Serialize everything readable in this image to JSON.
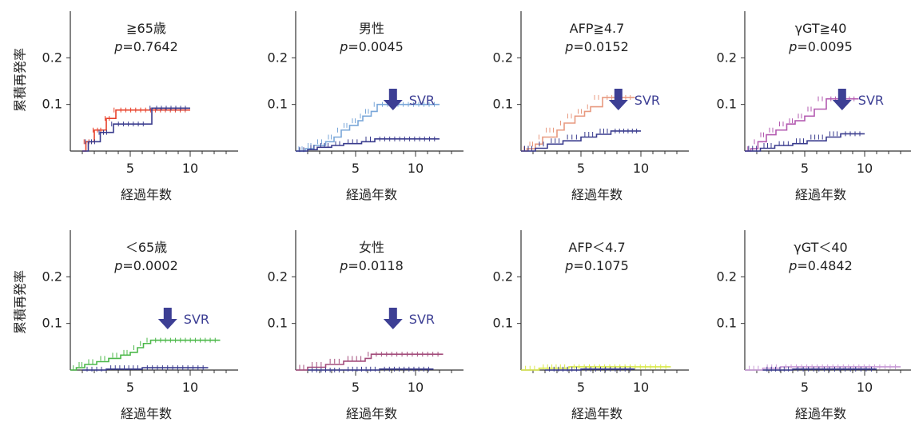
{
  "ylabel": "累積再発率",
  "xlabel": "経過年数",
  "colors": {
    "axis": "#333333",
    "svr_series": "#3a3c8e",
    "arrow": "#3d3f94",
    "text": "#222222"
  },
  "chart_data": [
    {
      "type": "line",
      "title": "≧65歳",
      "p_value": "0.7642",
      "svr_label": "",
      "xlim": [
        0,
        14
      ],
      "ylim": [
        0,
        0.3
      ],
      "xticks": [
        5,
        10
      ],
      "yticks": [
        0.1,
        0.2
      ],
      "series": [
        {
          "color": "#e8402a",
          "values": [
            [
              1,
              0
            ],
            [
              1.3,
              0.02
            ],
            [
              1.8,
              0.02
            ],
            [
              2,
              0.045
            ],
            [
              2.8,
              0.045
            ],
            [
              3,
              0.07
            ],
            [
              3.5,
              0.07
            ],
            [
              3.8,
              0.088
            ],
            [
              10,
              0.088
            ]
          ]
        },
        {
          "color": "#3a3c8e",
          "values": [
            [
              1,
              0
            ],
            [
              1.5,
              0.02
            ],
            [
              2.3,
              0.02
            ],
            [
              2.5,
              0.04
            ],
            [
              3.3,
              0.04
            ],
            [
              3.6,
              0.058
            ],
            [
              6.5,
              0.058
            ],
            [
              6.8,
              0.092
            ],
            [
              10,
              0.092
            ]
          ]
        }
      ]
    },
    {
      "type": "line",
      "title": "男性",
      "p_value": "0.0045",
      "svr_label": "SVR",
      "xlim": [
        0,
        14
      ],
      "ylim": [
        0,
        0.3
      ],
      "xticks": [
        5,
        10
      ],
      "yticks": [
        0.1,
        0.2
      ],
      "series": [
        {
          "color": "#7aa7d9",
          "values": [
            [
              0,
              0
            ],
            [
              0.8,
              0.005
            ],
            [
              1.5,
              0.012
            ],
            [
              2.5,
              0.02
            ],
            [
              3.2,
              0.03
            ],
            [
              3.8,
              0.045
            ],
            [
              4.5,
              0.055
            ],
            [
              5.2,
              0.065
            ],
            [
              5.6,
              0.075
            ],
            [
              6.3,
              0.085
            ],
            [
              6.8,
              0.1
            ],
            [
              12,
              0.1
            ]
          ]
        },
        {
          "color": "#3a3c8e",
          "values": [
            [
              0,
              0
            ],
            [
              1,
              0.003
            ],
            [
              1.8,
              0.008
            ],
            [
              3,
              0.012
            ],
            [
              4,
              0.016
            ],
            [
              5.5,
              0.02
            ],
            [
              6.6,
              0.026
            ],
            [
              12,
              0.026
            ]
          ]
        }
      ]
    },
    {
      "type": "line",
      "title": "AFP≧4.7",
      "p_value": "0.0152",
      "svr_label": "SVR",
      "xlim": [
        0,
        14
      ],
      "ylim": [
        0,
        0.3
      ],
      "xticks": [
        5,
        10
      ],
      "yticks": [
        0.1,
        0.2
      ],
      "series": [
        {
          "color": "#e89a80",
          "values": [
            [
              0,
              0
            ],
            [
              0.5,
              0.005
            ],
            [
              1.2,
              0.015
            ],
            [
              1.8,
              0.03
            ],
            [
              3,
              0.045
            ],
            [
              3.6,
              0.06
            ],
            [
              4.5,
              0.075
            ],
            [
              5.3,
              0.085
            ],
            [
              5.8,
              0.095
            ],
            [
              6.8,
              0.115
            ],
            [
              9.5,
              0.115
            ]
          ]
        },
        {
          "color": "#3a3c8e",
          "values": [
            [
              0,
              0
            ],
            [
              1.2,
              0.006
            ],
            [
              2.2,
              0.015
            ],
            [
              3.5,
              0.022
            ],
            [
              5,
              0.03
            ],
            [
              6.3,
              0.036
            ],
            [
              7.5,
              0.043
            ],
            [
              10,
              0.043
            ]
          ]
        }
      ]
    },
    {
      "type": "line",
      "title": "γGT≧40",
      "p_value": "0.0095",
      "svr_label": "SVR",
      "xlim": [
        0,
        14
      ],
      "ylim": [
        0,
        0.3
      ],
      "xticks": [
        5,
        10
      ],
      "yticks": [
        0.1,
        0.2
      ],
      "series": [
        {
          "color": "#b35ab0",
          "values": [
            [
              0,
              0
            ],
            [
              0.5,
              0.005
            ],
            [
              1.1,
              0.02
            ],
            [
              1.8,
              0.035
            ],
            [
              2.6,
              0.045
            ],
            [
              3.5,
              0.058
            ],
            [
              4.2,
              0.065
            ],
            [
              5,
              0.075
            ],
            [
              5.8,
              0.09
            ],
            [
              6.8,
              0.112
            ],
            [
              9.5,
              0.112
            ]
          ]
        },
        {
          "color": "#3a3c8e",
          "values": [
            [
              0,
              0
            ],
            [
              1.3,
              0.006
            ],
            [
              2.5,
              0.012
            ],
            [
              4,
              0.016
            ],
            [
              5.2,
              0.022
            ],
            [
              6.8,
              0.03
            ],
            [
              8,
              0.037
            ],
            [
              10,
              0.037
            ]
          ]
        }
      ]
    },
    {
      "type": "line",
      "title": "＜65歳",
      "p_value": "0.0002",
      "svr_label": "SVR",
      "xlim": [
        0,
        14
      ],
      "ylim": [
        0,
        0.3
      ],
      "xticks": [
        5,
        10
      ],
      "yticks": [
        0.1,
        0.2
      ],
      "series": [
        {
          "color": "#4cb84a",
          "values": [
            [
              0,
              0
            ],
            [
              0.5,
              0.005
            ],
            [
              1.2,
              0.012
            ],
            [
              2.2,
              0.018
            ],
            [
              3.2,
              0.025
            ],
            [
              4.2,
              0.032
            ],
            [
              5,
              0.038
            ],
            [
              5.6,
              0.048
            ],
            [
              6.1,
              0.057
            ],
            [
              6.7,
              0.064
            ],
            [
              12.5,
              0.064
            ]
          ]
        },
        {
          "color": "#3a3c8e",
          "values": [
            [
              1,
              0
            ],
            [
              3,
              0.002
            ],
            [
              6,
              0.005
            ],
            [
              11.5,
              0.005
            ]
          ]
        }
      ]
    },
    {
      "type": "line",
      "title": "女性",
      "p_value": "0.0118",
      "svr_label": "SVR",
      "xlim": [
        0,
        14
      ],
      "ylim": [
        0,
        0.3
      ],
      "xticks": [
        5,
        10
      ],
      "yticks": [
        0.1,
        0.2
      ],
      "series": [
        {
          "color": "#a34d7c",
          "values": [
            [
              0,
              0
            ],
            [
              1,
              0.006
            ],
            [
              2.5,
              0.012
            ],
            [
              4,
              0.019
            ],
            [
              5.8,
              0.025
            ],
            [
              6.3,
              0.034
            ],
            [
              12.3,
              0.034
            ]
          ]
        },
        {
          "color": "#3a3c8e",
          "values": [
            [
              1,
              0
            ],
            [
              4,
              0
            ],
            [
              7,
              0.002
            ],
            [
              11.5,
              0.002
            ]
          ]
        }
      ]
    },
    {
      "type": "line",
      "title": "AFP＜4.7",
      "p_value": "0.1075",
      "svr_label": "",
      "xlim": [
        0,
        14
      ],
      "ylim": [
        0,
        0.3
      ],
      "xticks": [
        5,
        10
      ],
      "yticks": [
        0.1,
        0.2
      ],
      "series": [
        {
          "color": "#d9e84a",
          "values": [
            [
              0,
              0
            ],
            [
              1.5,
              0.004
            ],
            [
              4,
              0.007
            ],
            [
              12.5,
              0.007
            ]
          ]
        },
        {
          "color": "#3a3c8e",
          "values": [
            [
              2,
              0
            ],
            [
              5,
              0.002
            ],
            [
              9.5,
              0.002
            ]
          ]
        }
      ]
    },
    {
      "type": "line",
      "title": "γGT＜40",
      "p_value": "0.4842",
      "svr_label": "",
      "xlim": [
        0,
        14
      ],
      "ylim": [
        0,
        0.3
      ],
      "xticks": [
        5,
        10
      ],
      "yticks": [
        0.1,
        0.2
      ],
      "series": [
        {
          "color": "#c89ad6",
          "values": [
            [
              0,
              0
            ],
            [
              1.5,
              0.004
            ],
            [
              3,
              0.007
            ],
            [
              13,
              0.007
            ]
          ]
        },
        {
          "color": "#3a3c8e",
          "values": [
            [
              1.5,
              0
            ],
            [
              4,
              0.002
            ],
            [
              11,
              0.002
            ]
          ]
        }
      ]
    }
  ]
}
